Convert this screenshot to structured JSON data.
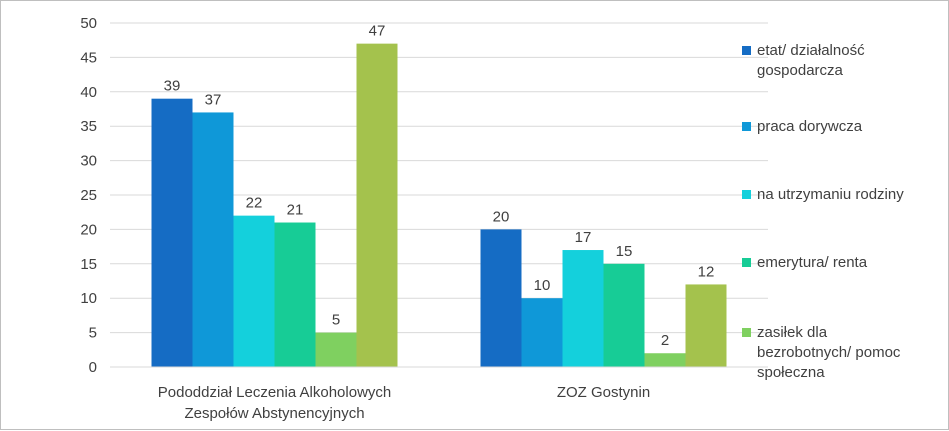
{
  "chart_data": {
    "type": "bar",
    "title": "",
    "xlabel": "",
    "ylabel": "",
    "categories": [
      [
        "Pododdział Leczenia Alkoholowych",
        "Zespołów Abstynencyjnych"
      ],
      [
        "ZOZ Gostynin"
      ]
    ],
    "ylim": [
      0,
      50
    ],
    "yticks": [
      0,
      5,
      10,
      15,
      20,
      25,
      30,
      35,
      40,
      45,
      50
    ],
    "grid": true,
    "legend_position": "right",
    "series": [
      {
        "name": "etat/ działalność gospodarcza",
        "color": "#156cc4",
        "values": [
          39,
          20
        ]
      },
      {
        "name": "praca dorywcza",
        "color": "#0f98d8",
        "values": [
          37,
          10
        ]
      },
      {
        "name": "na utrzymaniu rodziny",
        "color": "#14d0dc",
        "values": [
          22,
          17
        ]
      },
      {
        "name": "emerytura/ renta",
        "color": "#17cc96",
        "values": [
          21,
          15
        ]
      },
      {
        "name": "zasiłek dla bezrobotnych/ pomoc społeczna",
        "color": "#7fd060",
        "values": [
          5,
          2
        ]
      },
      {
        "name": "",
        "color": "#a4c24d",
        "values": [
          47,
          12
        ]
      }
    ],
    "legend": [
      {
        "lines": [
          "etat/ działalność",
          "gospodarcza"
        ],
        "color": "#156cc4"
      },
      {
        "lines": [
          "praca dorywcza"
        ],
        "color": "#0f98d8"
      },
      {
        "lines": [
          "na utrzymaniu rodziny"
        ],
        "color": "#14d0dc"
      },
      {
        "lines": [
          "emerytura/ renta"
        ],
        "color": "#17cc96"
      },
      {
        "lines": [
          "zasiłek dla",
          "bezrobotnych/ pomoc",
          "społeczna"
        ],
        "color": "#7fd060"
      }
    ]
  }
}
